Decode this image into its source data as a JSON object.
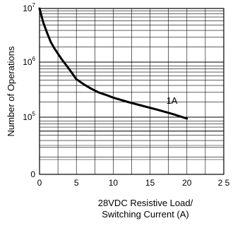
{
  "chart_data": {
    "type": "line",
    "title": "",
    "xlabel_line1": "28VDC Resistive Load/",
    "xlabel_line2": "Switching   Current   (A)",
    "ylabel": "Number of Operations",
    "xlim": [
      0,
      25
    ],
    "x_ticks": [
      "0",
      "5",
      "10",
      "15",
      "20",
      "2 5"
    ],
    "y_scale": "log",
    "y_tick_labels": [
      {
        "base": "10",
        "exp": "7"
      },
      {
        "base": "10",
        "exp": "6"
      },
      {
        "base": "10",
        "exp": "5"
      },
      {
        "base": "",
        "exp": "",
        "text": "0"
      }
    ],
    "grid": true,
    "series": [
      {
        "name": "1A",
        "x": [
          0,
          0.5,
          1,
          1.5,
          2,
          3,
          4,
          5,
          6,
          7,
          8,
          9,
          10,
          12,
          14,
          16,
          18,
          20
        ],
        "y": [
          10000000,
          5600000,
          3700000,
          2500000,
          1900000,
          1200000,
          800000,
          520000,
          420000,
          350000,
          300000,
          270000,
          240000,
          200000,
          170000,
          145000,
          122000,
          100000
        ]
      }
    ]
  }
}
